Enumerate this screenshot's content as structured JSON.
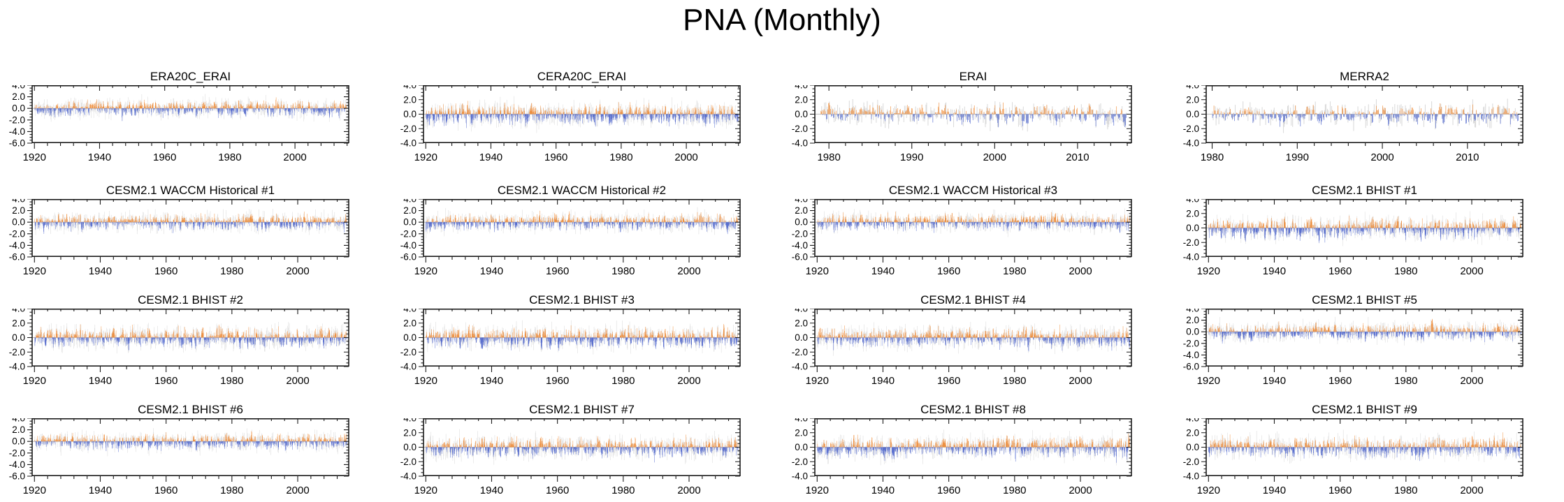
{
  "title": "PNA (Monthly)",
  "colors": {
    "positive_bar": "#EE7D1E",
    "negative_bar": "#3A55C8",
    "reference_shading": "#DBDBDB",
    "axis": "#1a1a1a",
    "zero_line": "#aaaaaa",
    "text": "#000000"
  },
  "chart_data": [
    {
      "type": "bar",
      "title": "ERA20C_ERAI",
      "x_start": 1920,
      "x_end": 2015,
      "x_tick_labels": [
        "1920",
        "1940",
        "1960",
        "1980",
        "2000"
      ],
      "x_major_step": 20,
      "x_minor_step": 4,
      "ylim": [
        -6,
        4
      ],
      "y_tick_labels": [
        "4.0",
        "2.0",
        "0.0",
        "-2.0",
        "-4.0",
        "-6.0"
      ],
      "y_major_step": 2,
      "y_minor_step": 0.5,
      "series": [
        {
          "name": "reference_shading"
        },
        {
          "name": "pna_index_monthly"
        }
      ],
      "seed": 11
    },
    {
      "type": "bar",
      "title": "CERA20C_ERAI",
      "x_start": 1920,
      "x_end": 2015,
      "x_tick_labels": [
        "1920",
        "1940",
        "1960",
        "1980",
        "2000"
      ],
      "x_major_step": 20,
      "x_minor_step": 4,
      "ylim": [
        -4,
        4
      ],
      "y_tick_labels": [
        "4.0",
        "2.0",
        "0.0",
        "-2.0",
        "-4.0"
      ],
      "y_major_step": 2,
      "y_minor_step": 0.5,
      "series": [
        {
          "name": "reference_shading"
        },
        {
          "name": "pna_index_monthly"
        }
      ],
      "seed": 22
    },
    {
      "type": "bar",
      "title": "ERAI",
      "x_start": 1979,
      "x_end": 2015,
      "x_tick_labels": [
        "1980",
        "1990",
        "2000",
        "2010"
      ],
      "x_major_step": 10,
      "x_minor_step": 2,
      "ylim": [
        -4,
        4
      ],
      "y_tick_labels": [
        "4.0",
        "2.0",
        "0.0",
        "-2.0",
        "-4.0"
      ],
      "y_major_step": 2,
      "y_minor_step": 0.5,
      "series": [
        {
          "name": "reference_shading"
        },
        {
          "name": "pna_index_monthly"
        }
      ],
      "seed": 33
    },
    {
      "type": "bar",
      "title": "MERRA2",
      "x_start": 1980,
      "x_end": 2015,
      "x_tick_labels": [
        "1980",
        "1990",
        "2000",
        "2010"
      ],
      "x_major_step": 10,
      "x_minor_step": 2,
      "ylim": [
        -4,
        4
      ],
      "y_tick_labels": [
        "4.0",
        "2.0",
        "0.0",
        "-2.0",
        "-4.0"
      ],
      "y_major_step": 2,
      "y_minor_step": 0.5,
      "series": [
        {
          "name": "reference_shading"
        },
        {
          "name": "pna_index_monthly"
        }
      ],
      "seed": 44
    },
    {
      "type": "bar",
      "title": "CESM2.1 WACCM Historical #1",
      "x_start": 1920,
      "x_end": 2014,
      "x_tick_labels": [
        "1920",
        "1940",
        "1960",
        "1980",
        "2000"
      ],
      "x_major_step": 20,
      "x_minor_step": 4,
      "ylim": [
        -6,
        4
      ],
      "y_tick_labels": [
        "4.0",
        "2.0",
        "0.0",
        "-2.0",
        "-4.0",
        "-6.0"
      ],
      "y_major_step": 2,
      "y_minor_step": 0.5,
      "series": [
        {
          "name": "reference_shading"
        },
        {
          "name": "pna_index_monthly"
        }
      ],
      "seed": 55
    },
    {
      "type": "bar",
      "title": "CESM2.1 WACCM Historical #2",
      "x_start": 1920,
      "x_end": 2014,
      "x_tick_labels": [
        "1920",
        "1940",
        "1960",
        "1980",
        "2000"
      ],
      "x_major_step": 20,
      "x_minor_step": 4,
      "ylim": [
        -6,
        4
      ],
      "y_tick_labels": [
        "4.0",
        "2.0",
        "0.0",
        "-2.0",
        "-4.0",
        "-6.0"
      ],
      "y_major_step": 2,
      "y_minor_step": 0.5,
      "series": [
        {
          "name": "reference_shading"
        },
        {
          "name": "pna_index_monthly"
        }
      ],
      "seed": 66
    },
    {
      "type": "bar",
      "title": "CESM2.1 WACCM Historical #3",
      "x_start": 1920,
      "x_end": 2014,
      "x_tick_labels": [
        "1920",
        "1940",
        "1960",
        "1980",
        "2000"
      ],
      "x_major_step": 20,
      "x_minor_step": 4,
      "ylim": [
        -6,
        4
      ],
      "y_tick_labels": [
        "4.0",
        "2.0",
        "0.0",
        "-2.0",
        "-4.0",
        "-6.0"
      ],
      "y_major_step": 2,
      "y_minor_step": 0.5,
      "series": [
        {
          "name": "reference_shading"
        },
        {
          "name": "pna_index_monthly"
        }
      ],
      "seed": 77
    },
    {
      "type": "bar",
      "title": "CESM2.1 BHIST #1",
      "x_start": 1920,
      "x_end": 2014,
      "x_tick_labels": [
        "1920",
        "1940",
        "1960",
        "1980",
        "2000"
      ],
      "x_major_step": 20,
      "x_minor_step": 4,
      "ylim": [
        -4,
        4
      ],
      "y_tick_labels": [
        "4.0",
        "2.0",
        "0.0",
        "-2.0",
        "-4.0"
      ],
      "y_major_step": 2,
      "y_minor_step": 0.5,
      "series": [
        {
          "name": "reference_shading"
        },
        {
          "name": "pna_index_monthly"
        }
      ],
      "seed": 88
    },
    {
      "type": "bar",
      "title": "CESM2.1 BHIST #2",
      "x_start": 1920,
      "x_end": 2014,
      "x_tick_labels": [
        "1920",
        "1940",
        "1960",
        "1980",
        "2000"
      ],
      "x_major_step": 20,
      "x_minor_step": 4,
      "ylim": [
        -4,
        4
      ],
      "y_tick_labels": [
        "4.0",
        "2.0",
        "0.0",
        "-2.0",
        "-4.0"
      ],
      "y_major_step": 2,
      "y_minor_step": 0.5,
      "series": [
        {
          "name": "reference_shading"
        },
        {
          "name": "pna_index_monthly"
        }
      ],
      "seed": 99
    },
    {
      "type": "bar",
      "title": "CESM2.1 BHIST #3",
      "x_start": 1920,
      "x_end": 2014,
      "x_tick_labels": [
        "1920",
        "1940",
        "1960",
        "1980",
        "2000"
      ],
      "x_major_step": 20,
      "x_minor_step": 4,
      "ylim": [
        -4,
        4
      ],
      "y_tick_labels": [
        "4.0",
        "2.0",
        "0.0",
        "-2.0",
        "-4.0"
      ],
      "y_major_step": 2,
      "y_minor_step": 0.5,
      "series": [
        {
          "name": "reference_shading"
        },
        {
          "name": "pna_index_monthly"
        }
      ],
      "seed": 110
    },
    {
      "type": "bar",
      "title": "CESM2.1 BHIST #4",
      "x_start": 1920,
      "x_end": 2014,
      "x_tick_labels": [
        "1920",
        "1940",
        "1960",
        "1980",
        "2000"
      ],
      "x_major_step": 20,
      "x_minor_step": 4,
      "ylim": [
        -4,
        4
      ],
      "y_tick_labels": [
        "4.0",
        "2.0",
        "0.0",
        "-2.0",
        "-4.0"
      ],
      "y_major_step": 2,
      "y_minor_step": 0.5,
      "series": [
        {
          "name": "reference_shading"
        },
        {
          "name": "pna_index_monthly"
        }
      ],
      "seed": 121
    },
    {
      "type": "bar",
      "title": "CESM2.1 BHIST #5",
      "x_start": 1920,
      "x_end": 2014,
      "x_tick_labels": [
        "1920",
        "1940",
        "1960",
        "1980",
        "2000"
      ],
      "x_major_step": 20,
      "x_minor_step": 4,
      "ylim": [
        -6,
        4
      ],
      "y_tick_labels": [
        "4.0",
        "2.0",
        "0.0",
        "-2.0",
        "-4.0",
        "-6.0"
      ],
      "y_major_step": 2,
      "y_minor_step": 0.5,
      "series": [
        {
          "name": "reference_shading"
        },
        {
          "name": "pna_index_monthly"
        }
      ],
      "seed": 132
    },
    {
      "type": "bar",
      "title": "CESM2.1 BHIST #6",
      "x_start": 1920,
      "x_end": 2014,
      "x_tick_labels": [
        "1920",
        "1940",
        "1960",
        "1980",
        "2000"
      ],
      "x_major_step": 20,
      "x_minor_step": 4,
      "ylim": [
        -6,
        4
      ],
      "y_tick_labels": [
        "4.0",
        "2.0",
        "0.0",
        "-2.0",
        "-4.0",
        "-6.0"
      ],
      "y_major_step": 2,
      "y_minor_step": 0.5,
      "series": [
        {
          "name": "reference_shading"
        },
        {
          "name": "pna_index_monthly"
        }
      ],
      "seed": 143
    },
    {
      "type": "bar",
      "title": "CESM2.1 BHIST #7",
      "x_start": 1920,
      "x_end": 2014,
      "x_tick_labels": [
        "1920",
        "1940",
        "1960",
        "1980",
        "2000"
      ],
      "x_major_step": 20,
      "x_minor_step": 4,
      "ylim": [
        -4,
        4
      ],
      "y_tick_labels": [
        "4.0",
        "2.0",
        "0.0",
        "-2.0",
        "-4.0"
      ],
      "y_major_step": 2,
      "y_minor_step": 0.5,
      "series": [
        {
          "name": "reference_shading"
        },
        {
          "name": "pna_index_monthly"
        }
      ],
      "seed": 154
    },
    {
      "type": "bar",
      "title": "CESM2.1 BHIST #8",
      "x_start": 1920,
      "x_end": 2014,
      "x_tick_labels": [
        "1920",
        "1940",
        "1960",
        "1980",
        "2000"
      ],
      "x_major_step": 20,
      "x_minor_step": 4,
      "ylim": [
        -4,
        4
      ],
      "y_tick_labels": [
        "4.0",
        "2.0",
        "0.0",
        "-2.0",
        "-4.0"
      ],
      "y_major_step": 2,
      "y_minor_step": 0.5,
      "series": [
        {
          "name": "reference_shading"
        },
        {
          "name": "pna_index_monthly"
        }
      ],
      "seed": 165
    },
    {
      "type": "bar",
      "title": "CESM2.1 BHIST #9",
      "x_start": 1920,
      "x_end": 2014,
      "x_tick_labels": [
        "1920",
        "1940",
        "1960",
        "1980",
        "2000"
      ],
      "x_major_step": 20,
      "x_minor_step": 4,
      "ylim": [
        -4,
        4
      ],
      "y_tick_labels": [
        "4.0",
        "2.0",
        "0.0",
        "-2.0",
        "-4.0"
      ],
      "y_major_step": 2,
      "y_minor_step": 0.5,
      "series": [
        {
          "name": "reference_shading"
        },
        {
          "name": "pna_index_monthly"
        }
      ],
      "seed": 176
    }
  ],
  "layout": {
    "grid_rows": 4,
    "grid_cols": 4,
    "bars_per_year": 12
  }
}
